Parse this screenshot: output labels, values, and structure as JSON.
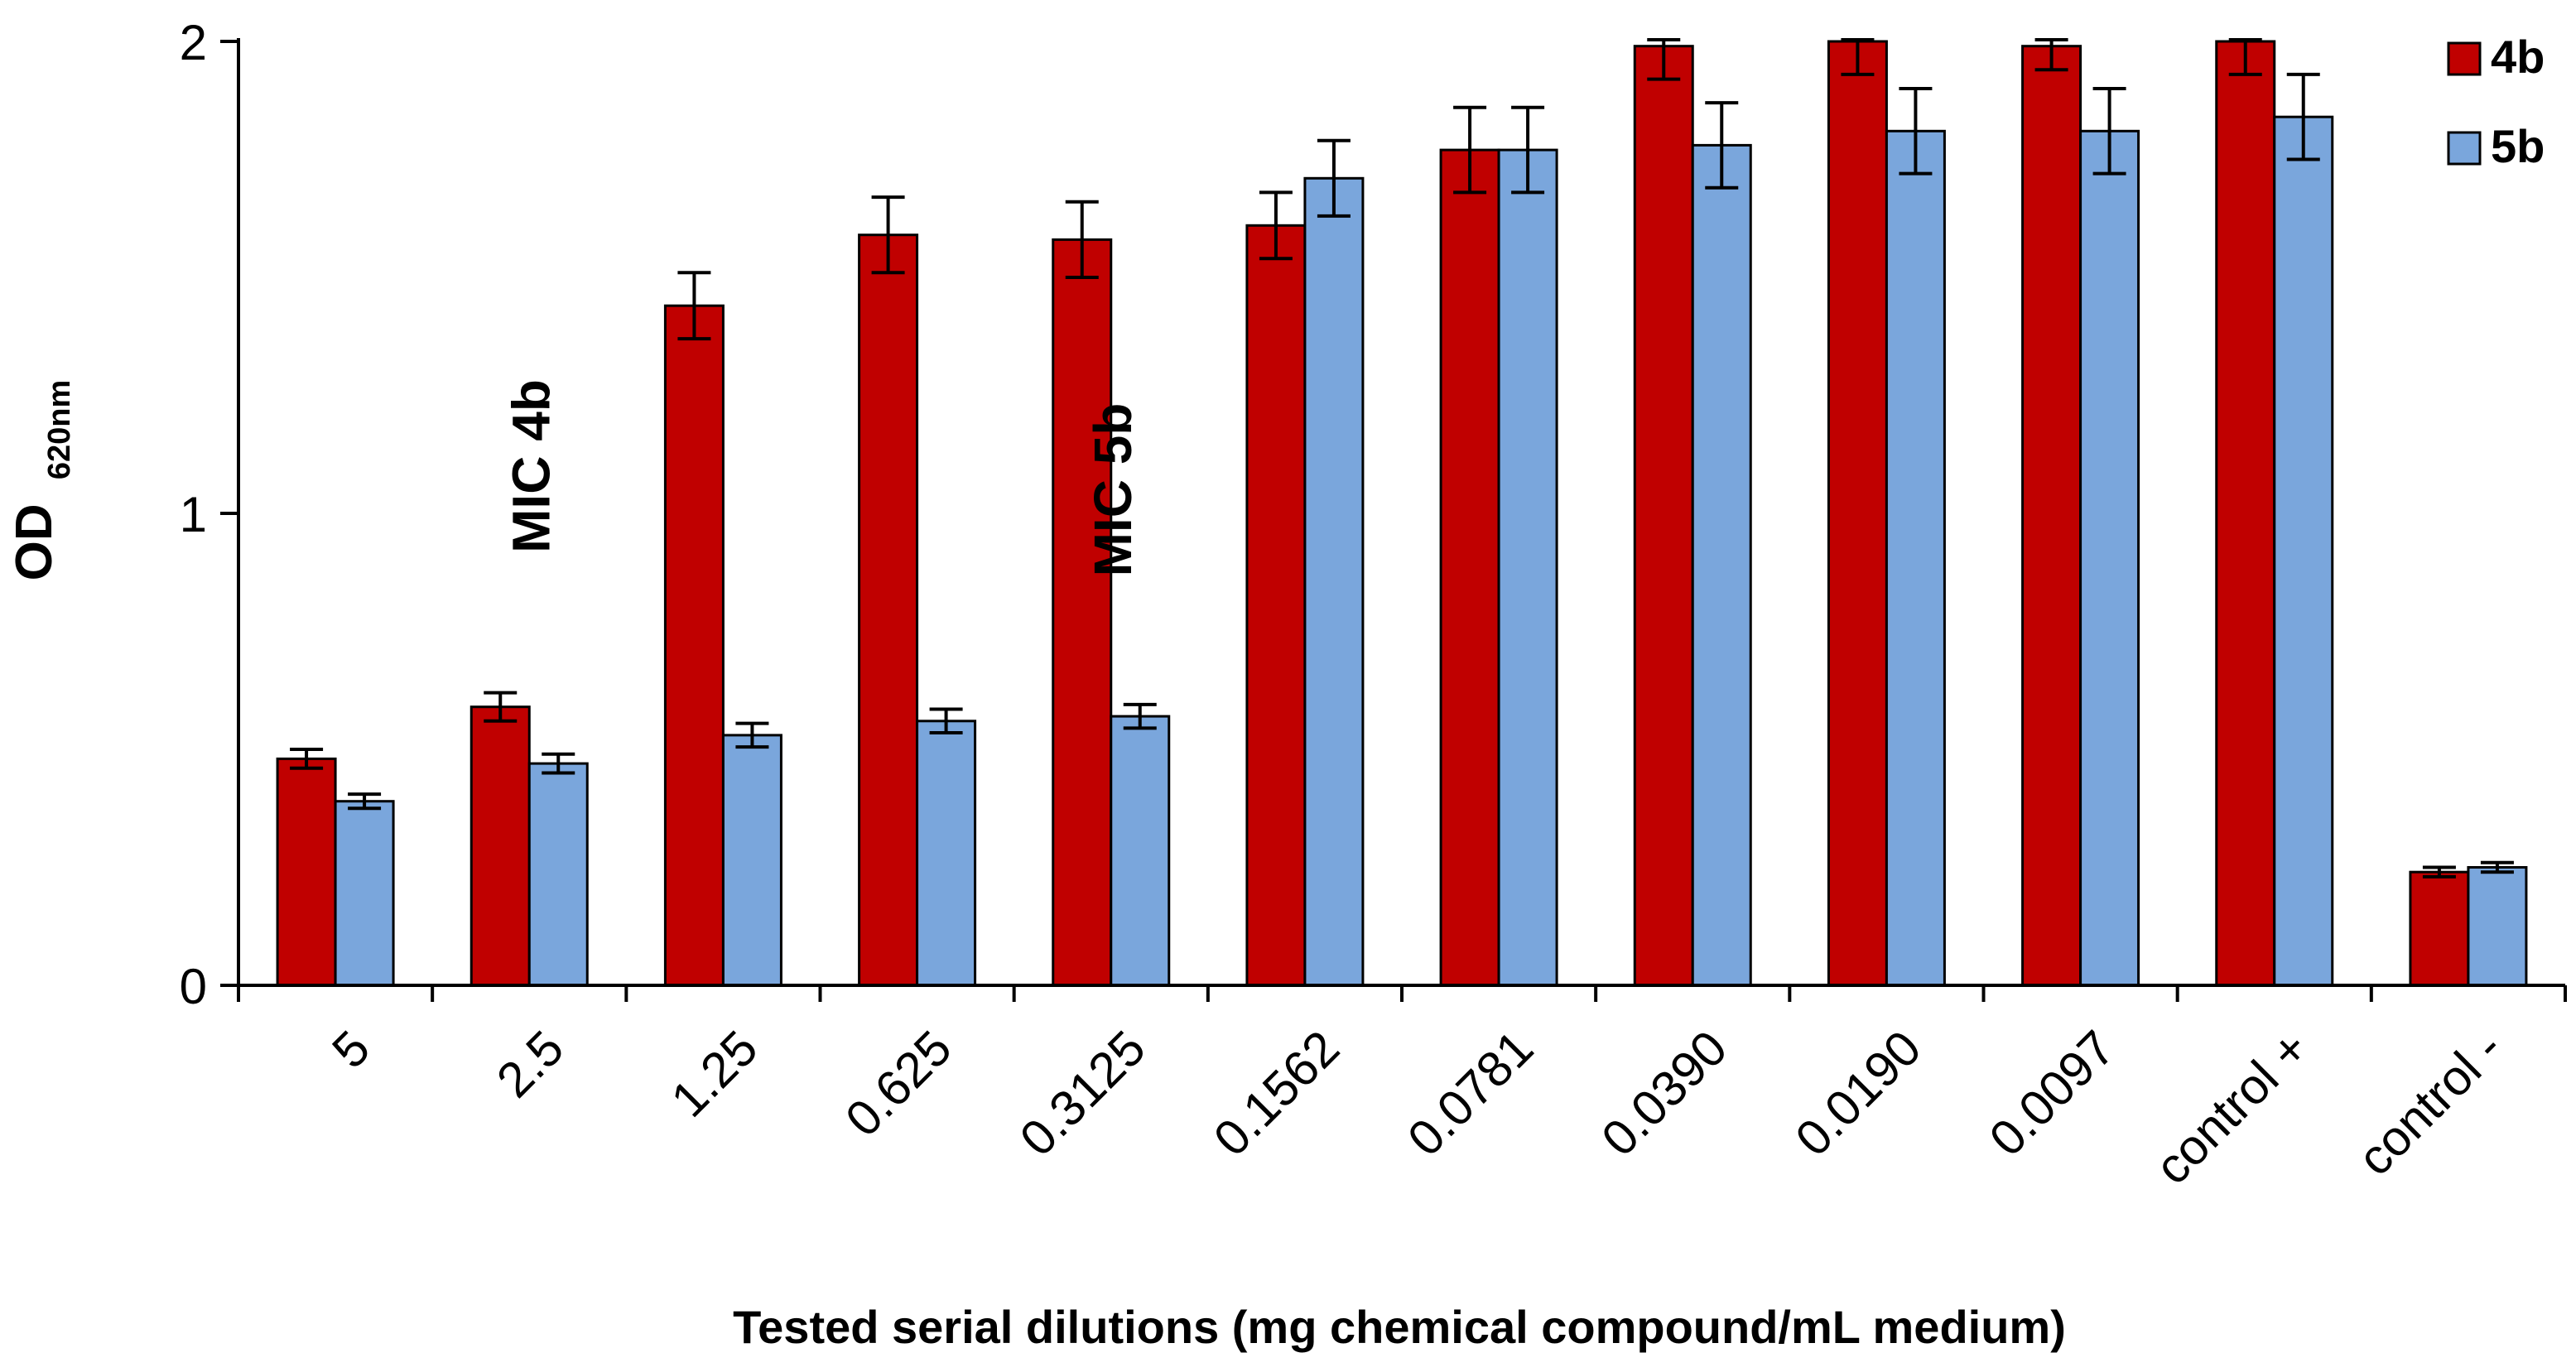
{
  "chart_data": {
    "type": "bar",
    "title": "",
    "xlabel": "Tested serial dilutions (mg chemical compound/mL medium)",
    "ylabel": "OD",
    "ylabel_subscript": "620nm",
    "ylim": [
      0,
      2
    ],
    "yticks": [
      "0",
      "1",
      "2"
    ],
    "grid": false,
    "legend_position": "top-right",
    "categories": [
      "5",
      "2.5",
      "1.25",
      "0.625",
      "0.3125",
      "0.1562",
      "0.0781",
      "0.0390",
      "0.0190",
      "0.0097",
      "control +",
      "control -"
    ],
    "series": [
      {
        "name": "4b",
        "color": "#C00000",
        "values": [
          0.48,
          0.59,
          1.44,
          1.59,
          1.58,
          1.61,
          1.77,
          1.99,
          2.0,
          1.99,
          2.0,
          0.24
        ],
        "errors": [
          0.02,
          0.03,
          0.07,
          0.08,
          0.08,
          0.07,
          0.09,
          0.07,
          0.07,
          0.05,
          0.07,
          0.01
        ]
      },
      {
        "name": "5b",
        "color": "#7AA6DC",
        "values": [
          0.39,
          0.47,
          0.53,
          0.56,
          0.57,
          1.71,
          1.77,
          1.78,
          1.81,
          1.81,
          1.84,
          0.25
        ],
        "errors": [
          0.015,
          0.02,
          0.025,
          0.025,
          0.025,
          0.08,
          0.09,
          0.09,
          0.09,
          0.09,
          0.09,
          0.01
        ]
      }
    ],
    "annotations": [
      {
        "text": "MIC 4b",
        "category": "2.5",
        "y": 1.1,
        "color": "#C00000"
      },
      {
        "text": "MIC 5b",
        "category": "0.3125",
        "y": 1.05,
        "color": "#5B9BD5"
      }
    ]
  }
}
